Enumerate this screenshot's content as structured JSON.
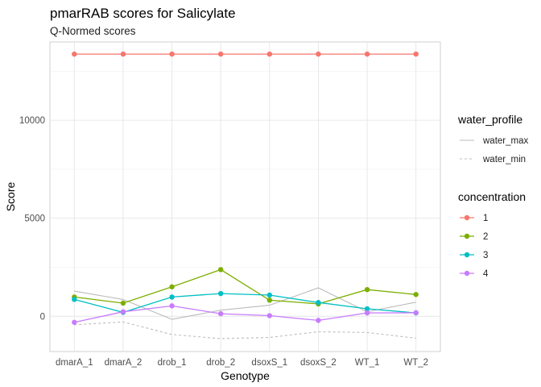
{
  "chart_data": {
    "type": "line",
    "title": "pmarRAB scores for Salicylate",
    "subtitle": "Q-Normed scores",
    "xlabel": "Genotype",
    "ylabel": "Score",
    "categories": [
      "dmarA_1",
      "dmarA_2",
      "drob_1",
      "drob_2",
      "dsoxS_1",
      "dsoxS_2",
      "WT_1",
      "WT_2"
    ],
    "ylim": [
      -1800,
      14000
    ],
    "yticks": [
      0,
      5000,
      10000
    ],
    "grid": true,
    "legend_position": "right",
    "water_profile": {
      "legend_title": "water_profile",
      "series": [
        {
          "name": "water_max",
          "color": "#bbbbbb",
          "dash": "solid",
          "values": [
            1280,
            860,
            -160,
            310,
            560,
            1450,
            230,
            720
          ]
        },
        {
          "name": "water_min",
          "color": "#bbbbbb",
          "dash": "dashed",
          "values": [
            -440,
            -290,
            -930,
            -1140,
            -1080,
            -790,
            -830,
            -1120
          ]
        }
      ]
    },
    "concentration": {
      "legend_title": "concentration",
      "series": [
        {
          "name": "1",
          "color": "#f8766d",
          "values": [
            13380,
            13380,
            13380,
            13380,
            13380,
            13380,
            13380,
            13380
          ]
        },
        {
          "name": "2",
          "color": "#7cae00",
          "values": [
            980,
            670,
            1500,
            2380,
            820,
            630,
            1360,
            1110
          ]
        },
        {
          "name": "3",
          "color": "#00bfc4",
          "values": [
            860,
            200,
            980,
            1160,
            1080,
            700,
            380,
            170
          ]
        },
        {
          "name": "4",
          "color": "#c77cff",
          "values": [
            -310,
            230,
            530,
            130,
            30,
            -210,
            170,
            180
          ]
        }
      ]
    }
  }
}
